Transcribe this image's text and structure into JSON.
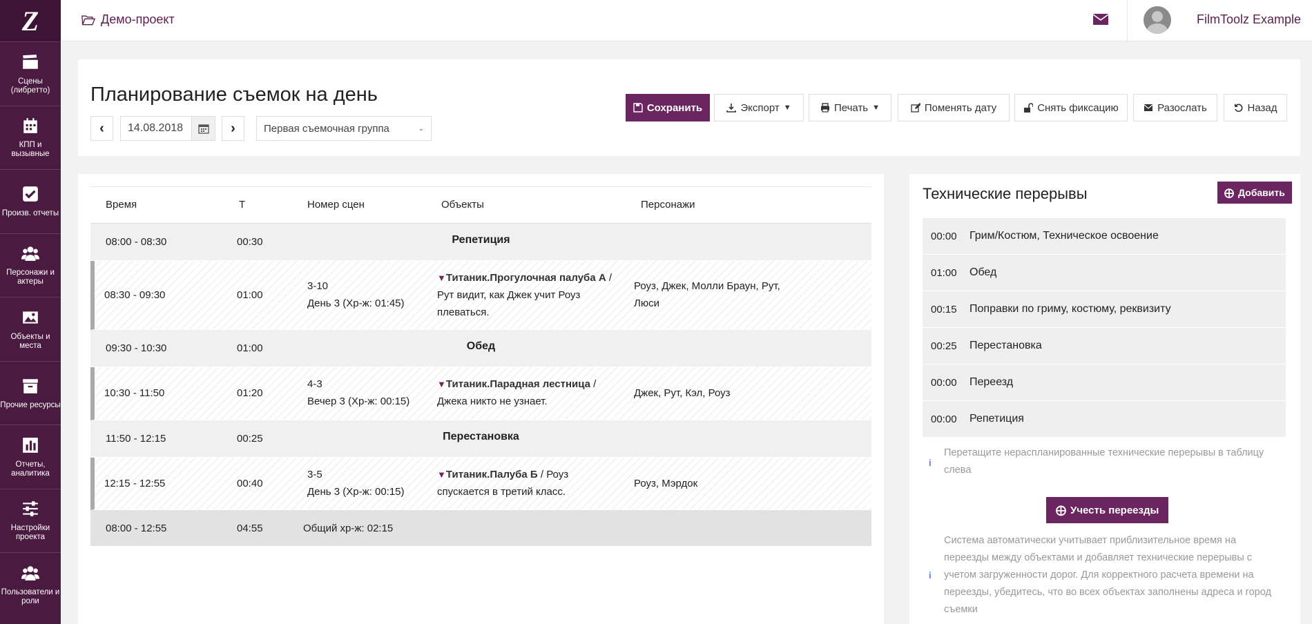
{
  "sidebar": {
    "logo": "Z",
    "items": [
      {
        "label": "Сцены (либретто)",
        "icon": "clapperboard-icon"
      },
      {
        "label": "КПП и вызывные",
        "icon": "calendar-icon"
      },
      {
        "label": "Произв. отчеты",
        "icon": "checkbox-icon"
      },
      {
        "label": "Персонажи и актеры",
        "icon": "users-icon"
      },
      {
        "label": "Объекты и места",
        "icon": "image-icon"
      },
      {
        "label": "Прочие ресурсы",
        "icon": "archive-icon"
      },
      {
        "label": "Отчеты, аналитика",
        "icon": "bar-chart-icon"
      },
      {
        "label": "Настройки проекта",
        "icon": "sliders-icon"
      },
      {
        "label": "Пользователи и роли",
        "icon": "users-icon"
      }
    ]
  },
  "topbar": {
    "project": "Демо-проект",
    "user": "FilmToolz Example"
  },
  "header": {
    "title": "Планирование съемок на день",
    "date": "14.08.2018",
    "group": "Первая съемочная группа",
    "buttons": {
      "save": "Сохранить",
      "export": "Экспорт",
      "print": "Печать",
      "change_date": "Поменять дату",
      "unlock": "Снять фиксацию",
      "send": "Разослать",
      "back": "Назад"
    }
  },
  "schedule": {
    "columns": [
      "Время",
      "Т",
      "Номер сцен",
      "Объекты",
      "Персонажи"
    ],
    "rows": [
      {
        "kind": "break",
        "time": "08:00 - 08:30",
        "dur": "00:30",
        "title": "Репетиция"
      },
      {
        "kind": "scene",
        "time": "08:30 - 09:30",
        "dur": "01:00",
        "scene": "3-10",
        "scene_sub": "День 3 (Хр-ж: 01:45)",
        "obj_name": "Титаник.Прогулочная палуба А",
        "obj_rest_1": " /",
        "obj_line2": "Рут видит, как Джек учит Роуз",
        "obj_line3": "плеваться.",
        "chars_1": "Роуз, Джек, Молли Браун, Рут,",
        "chars_2": "Люси"
      },
      {
        "kind": "break",
        "time": "09:30 - 10:30",
        "dur": "01:00",
        "title": "Обед"
      },
      {
        "kind": "scene",
        "time": "10:30 - 11:50",
        "dur": "01:20",
        "scene": "4-3",
        "scene_sub": "Вечер 3 (Хр-ж: 00:15)",
        "obj_name": "Титаник.Парадная лестница",
        "obj_rest_1": " /",
        "obj_line2": "Джека никто не узнает.",
        "chars_1": "Джек, Рут, Кэл, Роуз"
      },
      {
        "kind": "break",
        "time": "11:50 - 12:15",
        "dur": "00:25",
        "title": "Перестановка"
      },
      {
        "kind": "scene",
        "time": "12:15 - 12:55",
        "dur": "00:40",
        "scene": "3-5",
        "scene_sub": "День 3 (Хр-ж: 00:15)",
        "obj_name": "Титаник.Палуба Б",
        "obj_rest_1": " / Роуз",
        "obj_line2": "спускается в третий класс.",
        "chars_1": "Роуз, Мэрдок"
      },
      {
        "kind": "total",
        "time": "08:00 - 12:55",
        "dur": "04:55",
        "summary": "Общий хр-ж: 02:15"
      }
    ]
  },
  "breaks_panel": {
    "title": "Технические перерывы",
    "add": "Добавить",
    "items": [
      {
        "t": "00:00",
        "label": "Грим/Костюм, Техническое освоение"
      },
      {
        "t": "01:00",
        "label": "Обед"
      },
      {
        "t": "00:15",
        "label": "Поправки по гриму, костюму, реквизиту"
      },
      {
        "t": "00:25",
        "label": "Перестановка"
      },
      {
        "t": "00:00",
        "label": "Переезд"
      },
      {
        "t": "00:00",
        "label": "Репетиция"
      }
    ],
    "hint1_a": "Перетащите нераспланированные технические перерывы в таблицу",
    "hint1_b": "слева",
    "move_btn": "Учесть переезды",
    "hint2_a": "Система автоматически учитывает приблизительное время на",
    "hint2_b": "переезды между объектами и добавляет технические перерывы с",
    "hint2_c": "учетом загруженности дорог. Для корректного расчета времени на",
    "hint2_d": "переезды, убедитесь, что во всех объектах заполнены адреса и город",
    "hint2_e": "съемки"
  },
  "colors": {
    "brand": "#6b2560",
    "sidebar": "#4a1a40"
  }
}
